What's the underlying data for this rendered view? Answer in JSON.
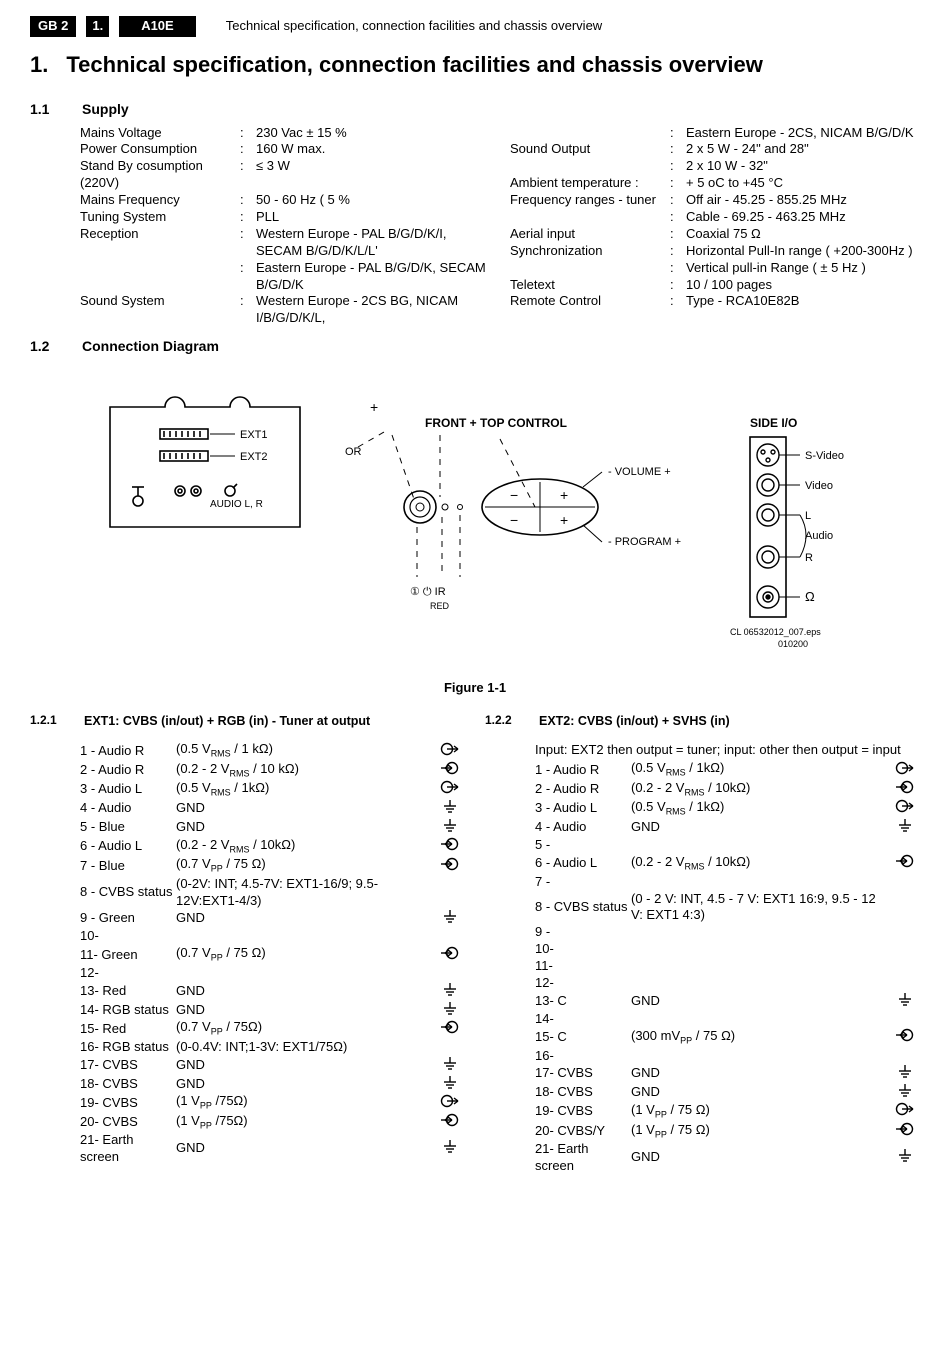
{
  "header": {
    "box1": "GB 2",
    "box2": "1.",
    "box3": "A10E",
    "title": "Technical specification, connection facilities and chassis overview"
  },
  "h1_prefix": "1.",
  "h1": "Technical specification, connection facilities and chassis overview",
  "sec11_num": "1.1",
  "sec11_title": "Supply",
  "supply_left": [
    {
      "l": "Mains Voltage",
      "v": "230 Vac ± 15 %"
    },
    {
      "l": "Power Consumption",
      "v": "160 W max."
    },
    {
      "l": "Stand By cosumption (220V)",
      "v": "≤ 3 W"
    },
    {
      "l": "Mains Frequency",
      "v": "50 - 60 Hz ( 5 %"
    },
    {
      "l": "Tuning System",
      "v": "PLL"
    },
    {
      "l": "Reception",
      "v": "Western Europe - PAL B/G/D/K/I, SECAM B/G/D/K/L/L'"
    },
    {
      "l": "",
      "v": "Eastern Europe - PAL B/G/D/K, SECAM B/G/D/K"
    },
    {
      "l": "Sound System",
      "v": "Western Europe - 2CS BG, NICAM I/B/G/D/K/L,"
    }
  ],
  "supply_right": [
    {
      "l": "",
      "v": "Eastern Europe - 2CS, NICAM B/G/D/K"
    },
    {
      "l": "Sound Output",
      "v": "2 x 5 W  - 24\" and 28\""
    },
    {
      "l": "",
      "v": "2 x 10 W  - 32\""
    },
    {
      "l": "Ambient temperature :",
      "v": "+ 5 oC to  +45 °C"
    },
    {
      "l": "Frequency ranges  - tuner",
      "v": "Off air - 45.25 - 855.25 MHz"
    },
    {
      "l": "",
      "v": "Cable - 69.25 - 463.25 MHz"
    },
    {
      "l": "Aerial input",
      "v": "Coaxial 75 Ω"
    },
    {
      "l": "Synchronization",
      "v": "Horizontal Pull-In range ( +200-300Hz )"
    },
    {
      "l": "",
      "v": "Vertical pull-in Range ( ± 5 Hz )"
    },
    {
      "l": "Teletext",
      "v": "10 / 100 pages"
    },
    {
      "l": "Remote Control",
      "v": "Type - RCA10E82B"
    }
  ],
  "sec12_num": "1.2",
  "sec12_title": "Connection Diagram",
  "diagram": {
    "ext1": "EXT1",
    "ext2": "EXT2",
    "audio": "AUDIO L, R",
    "front_title": "FRONT + TOP CONTROL",
    "or": "OR",
    "volume": "- VOLUME +",
    "program": "- PROGRAM +",
    "bottom_syms": "①  ⏻  IR",
    "red": "RED",
    "side_title": "SIDE I/O",
    "svideo": "S-Video",
    "video": "Video",
    "l": "L",
    "audio_lbl": "Audio",
    "r": "R",
    "hp": "Ω",
    "code": "CL 06532012_007.eps",
    "date": "010200",
    "fig": "Figure 1-1"
  },
  "sec121_num": "1.2.1",
  "sec121_title": "EXT1: CVBS (in/out) + RGB (in) - Tuner at output",
  "sec122_num": "1.2.2",
  "sec122_title": "EXT2: CVBS (in/out) + SVHS (in)",
  "ext2_note": "Input: EXT2 then output = tuner; input: other then output = input",
  "ext1_pins": [
    {
      "n": "1  - Audio R",
      "d": "(0.5 V<sub>RMS</sub> / 1 kΩ)",
      "s": "out"
    },
    {
      "n": "2  - Audio R",
      "d": "(0.2 - 2 V<sub>RMS</sub> / 10 kΩ)",
      "s": "in"
    },
    {
      "n": "3  - Audio L",
      "d": "(0.5 V<sub>RMS</sub> / 1kΩ)",
      "s": "out"
    },
    {
      "n": "4  - Audio",
      "d": "GND",
      "s": "gnd"
    },
    {
      "n": "5  - Blue",
      "d": "GND",
      "s": "gnd"
    },
    {
      "n": "6  - Audio L",
      "d": "(0.2 - 2 V<sub>RMS</sub> / 10kΩ)",
      "s": "in"
    },
    {
      "n": "7  - Blue",
      "d": "(0.7 V<sub>PP</sub> / 75 Ω)",
      "s": "in"
    },
    {
      "n": "8  - CVBS status",
      "d": "(0-2V: INT; 4.5-7V: EXT1-16/9; 9.5-12V:EXT1-4/3)",
      "s": ""
    },
    {
      "n": "9  - Green",
      "d": "GND",
      "s": "gnd"
    },
    {
      "n": "10-",
      "d": "",
      "s": ""
    },
    {
      "n": "11- Green",
      "d": "(0.7 V<sub>PP</sub> / 75 Ω)",
      "s": "in"
    },
    {
      "n": "12-",
      "d": "",
      "s": ""
    },
    {
      "n": "13- Red",
      "d": "GND",
      "s": "gnd"
    },
    {
      "n": "14- RGB status",
      "d": "GND",
      "s": "gnd"
    },
    {
      "n": "15- Red",
      "d": "(0.7 V<sub>PP</sub> / 75Ω)",
      "s": "in"
    },
    {
      "n": "16- RGB status",
      "d": "(0-0.4V: INT;1-3V: EXT1/75Ω)",
      "s": ""
    },
    {
      "n": "17- CVBS",
      "d": "GND",
      "s": "gnd"
    },
    {
      "n": "18- CVBS",
      "d": "GND",
      "s": "gnd"
    },
    {
      "n": "19- CVBS",
      "d": "(1 V<sub>PP</sub> /75Ω)",
      "s": "out"
    },
    {
      "n": "20- CVBS",
      "d": "(1 V<sub>PP</sub> /75Ω)",
      "s": "in"
    },
    {
      "n": "21- Earth screen",
      "d": "GND",
      "s": "gnd"
    }
  ],
  "ext2_pins": [
    {
      "n": "1  - Audio R",
      "d": "(0.5 V<sub>RMS</sub> / 1kΩ)",
      "s": "out"
    },
    {
      "n": "2  - Audio R",
      "d": "(0.2 - 2 V<sub>RMS</sub> / 10kΩ)",
      "s": "in"
    },
    {
      "n": "3  - Audio L",
      "d": "(0.5 V<sub>RMS</sub> / 1kΩ)",
      "s": "out"
    },
    {
      "n": "4  - Audio",
      "d": "GND",
      "s": "gnd"
    },
    {
      "n": "5  -",
      "d": "",
      "s": ""
    },
    {
      "n": "6  - Audio L",
      "d": "(0.2 - 2 V<sub>RMS</sub> / 10kΩ)",
      "s": "in"
    },
    {
      "n": "7  -",
      "d": "",
      "s": ""
    },
    {
      "n": "8  - CVBS status",
      "d": "(0 - 2 V: INT, 4.5 - 7 V: EXT1 16:9, 9.5 - 12 V: EXT1 4:3)",
      "s": ""
    },
    {
      "n": "9  -",
      "d": "",
      "s": ""
    },
    {
      "n": "10-",
      "d": "",
      "s": ""
    },
    {
      "n": "11-",
      "d": "",
      "s": ""
    },
    {
      "n": "12-",
      "d": "",
      "s": ""
    },
    {
      "n": "13- C",
      "d": "GND",
      "s": "gnd"
    },
    {
      "n": "14-",
      "d": "",
      "s": ""
    },
    {
      "n": "15- C",
      "d": "(300 mV<sub>PP</sub> / 75 Ω)",
      "s": "in"
    },
    {
      "n": "16-",
      "d": "",
      "s": ""
    },
    {
      "n": "17- CVBS",
      "d": "GND",
      "s": "gnd"
    },
    {
      "n": "18- CVBS",
      "d": "GND",
      "s": "gnd"
    },
    {
      "n": "19- CVBS",
      "d": "(1 V<sub>PP</sub> / 75 Ω)",
      "s": "out"
    },
    {
      "n": "20- CVBS/Y",
      "d": "(1 V<sub>PP</sub> / 75 Ω)",
      "s": "in"
    },
    {
      "n": "21- Earth screen",
      "d": "GND",
      "s": "gnd"
    }
  ]
}
